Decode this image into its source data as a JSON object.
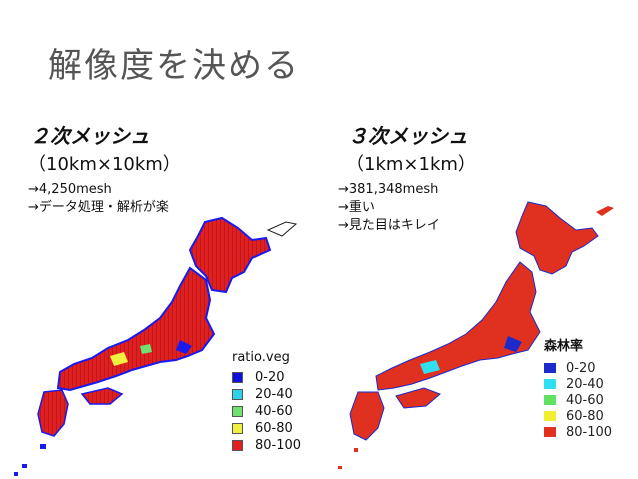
{
  "slide": {
    "title": "解像度を決める"
  },
  "left": {
    "heading": "２次メッシュ",
    "resolution": "（10km×10km）",
    "notes": [
      "→4,250mesh",
      "→データ処理・解析が楽"
    ],
    "legend": {
      "title": "ratio.veg",
      "entries": [
        {
          "label": "0-20",
          "color": "#1010dd"
        },
        {
          "label": "20-40",
          "color": "#30d0e8"
        },
        {
          "label": "40-60",
          "color": "#70e070"
        },
        {
          "label": "60-80",
          "color": "#f0f040"
        },
        {
          "label": "80-100",
          "color": "#e02020"
        }
      ]
    }
  },
  "right": {
    "heading": "３次メッシュ",
    "resolution": "（1km×1km）",
    "notes": [
      "→381,348mesh",
      "→重い",
      "→見た目はキレイ"
    ],
    "legend": {
      "title": "森林率",
      "entries": [
        {
          "label": "0-20",
          "color": "#1a2acc"
        },
        {
          "label": "20-40",
          "color": "#30e0f0"
        },
        {
          "label": "40-60",
          "color": "#60e060"
        },
        {
          "label": "60-80",
          "color": "#f0f030"
        },
        {
          "label": "80-100",
          "color": "#e03020"
        }
      ]
    }
  }
}
